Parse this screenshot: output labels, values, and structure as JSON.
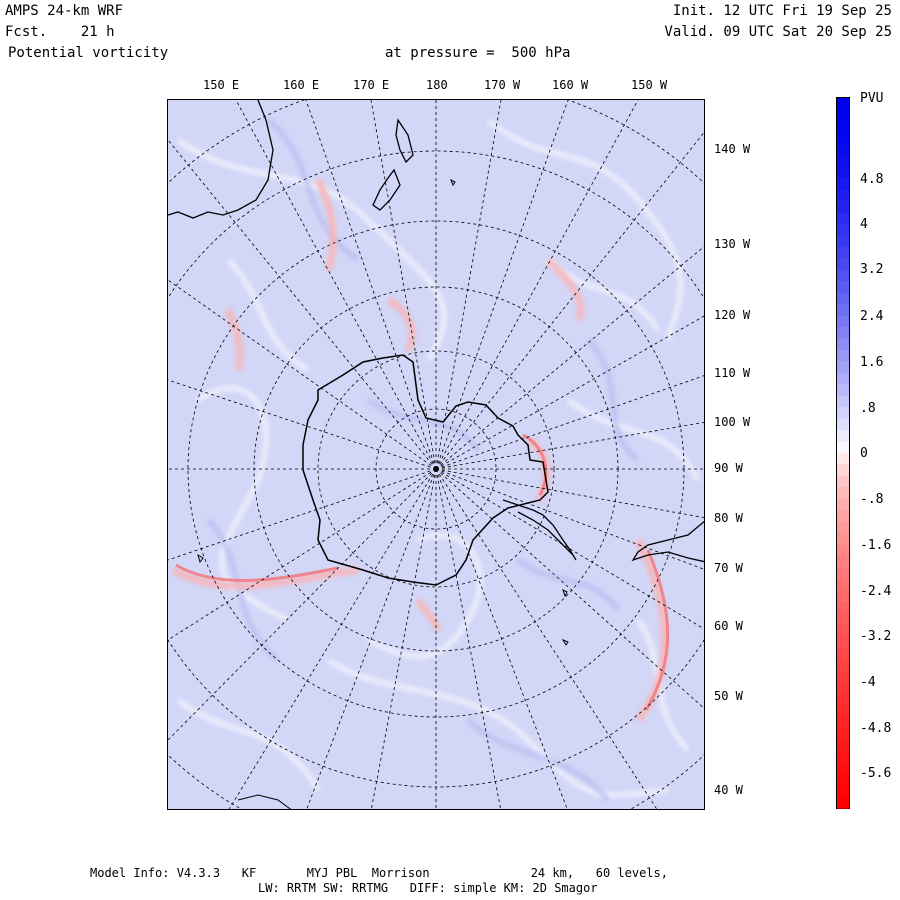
{
  "header": {
    "model": "AMPS 24-km WRF",
    "forecast": "Fcst.    21 h",
    "field": "Potential vorticity",
    "pressure": "at pressure =  500 hPa",
    "init": "Init. 12 UTC Fri 19 Sep 25",
    "valid": "Valid. 09 UTC Sat 20 Sep 25"
  },
  "map": {
    "top_lon_labels": [
      "150 E",
      "160 E",
      "170 E",
      "180",
      "170 W",
      "160 W",
      "150 W"
    ],
    "right_lon_labels": [
      "140 W",
      "130 W",
      "120 W",
      "110 W",
      "100 W",
      "90 W",
      "80 W",
      "70 W",
      "60 W",
      "50 W",
      "40 W"
    ]
  },
  "colorbar": {
    "unit": "PVU",
    "labels": [
      "4.8",
      "4",
      "3.2",
      "2.4",
      "1.6",
      ".8",
      "0",
      "-.8",
      "-1.6",
      "-2.4",
      "-3.2",
      "-4",
      "-4.8",
      "-5.6"
    ],
    "colors": {
      "max": "#0000ee",
      "zero": "#ffffff",
      "min": "#ff0000"
    }
  },
  "footer": {
    "line1": "Model Info: V4.3.3   KF       MYJ PBL  Morrison              24 km,   60 levels,",
    "line2": "LW: RRTM SW: RRTMG   DIFF: simple KM: 2D Smagor"
  }
}
